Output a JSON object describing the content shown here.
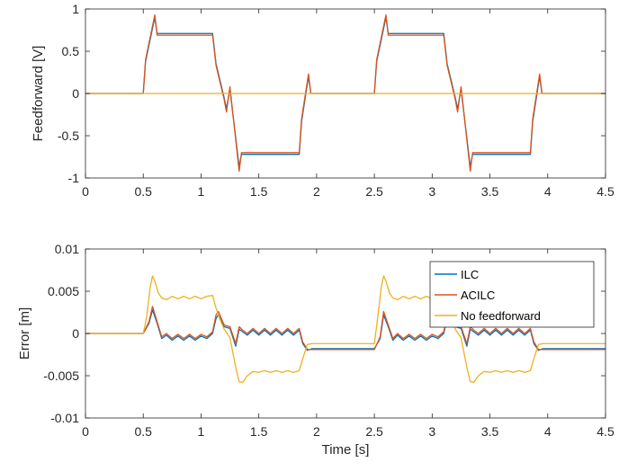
{
  "chart_data": [
    {
      "type": "line",
      "title": "",
      "xlabel": "",
      "ylabel": "Feedforward [V]",
      "xlim": [
        0,
        4.5
      ],
      "ylim": [
        -1,
        1
      ],
      "xticks": [
        0,
        0.5,
        1,
        1.5,
        2,
        2.5,
        3,
        3.5,
        4,
        4.5
      ],
      "xtick_labels": [
        "0",
        "0.5",
        "1",
        "1.5",
        "2",
        "2.5",
        "3",
        "3.5",
        "4",
        "4.5"
      ],
      "yticks": [
        -1,
        -0.5,
        0,
        0.5,
        1
      ],
      "ytick_labels": [
        "-1",
        "-0.5",
        "0",
        "0.5",
        "1"
      ],
      "grid": false,
      "series": [
        {
          "color": "#0072BD",
          "x": [
            0,
            0.5,
            0.52,
            0.6,
            0.62,
            1.1,
            1.13,
            1.2,
            1.22,
            1.25,
            1.33,
            1.35,
            1.85,
            1.87,
            1.93,
            1.95,
            2.5,
            2.52,
            2.6,
            2.62,
            3.1,
            3.13,
            3.2,
            3.22,
            3.25,
            3.33,
            3.35,
            3.85,
            3.87,
            3.93,
            3.95,
            4.5
          ],
          "y": [
            0,
            0,
            0.38,
            0.9,
            0.71,
            0.71,
            0.35,
            -0.05,
            -0.18,
            0.05,
            -0.87,
            -0.72,
            -0.72,
            -0.33,
            0.2,
            0,
            0,
            0.38,
            0.9,
            0.71,
            0.71,
            0.35,
            -0.05,
            -0.18,
            0.05,
            -0.87,
            -0.72,
            -0.72,
            -0.33,
            0.2,
            0,
            0
          ]
        },
        {
          "color": "#D95319",
          "x": [
            0,
            0.5,
            0.52,
            0.6,
            0.62,
            1.1,
            1.13,
            1.2,
            1.22,
            1.25,
            1.33,
            1.35,
            1.85,
            1.87,
            1.93,
            1.95,
            2.5,
            2.52,
            2.6,
            2.62,
            3.1,
            3.13,
            3.2,
            3.22,
            3.25,
            3.33,
            3.35,
            3.85,
            3.87,
            3.93,
            3.95,
            4.5
          ],
          "y": [
            0,
            0,
            0.4,
            0.93,
            0.69,
            0.69,
            0.33,
            -0.07,
            -0.22,
            0.08,
            -0.92,
            -0.7,
            -0.7,
            -0.3,
            0.23,
            0,
            0,
            0.4,
            0.93,
            0.69,
            0.69,
            0.33,
            -0.07,
            -0.22,
            0.08,
            -0.92,
            -0.7,
            -0.7,
            -0.3,
            0.23,
            0,
            0
          ]
        },
        {
          "color": "#EDB120",
          "x": [
            0,
            4.5
          ],
          "y": [
            0,
            0
          ]
        }
      ]
    },
    {
      "type": "line",
      "title": "",
      "xlabel": "Time [s]",
      "ylabel": "Error [m]",
      "xlim": [
        0,
        4.5
      ],
      "ylim": [
        -0.01,
        0.01
      ],
      "xticks": [
        0,
        0.5,
        1,
        1.5,
        2,
        2.5,
        3,
        3.5,
        4,
        4.5
      ],
      "xtick_labels": [
        "0",
        "0.5",
        "1",
        "1.5",
        "2",
        "2.5",
        "3",
        "3.5",
        "4",
        "4.5"
      ],
      "yticks": [
        -0.01,
        -0.005,
        0,
        0.005,
        0.01
      ],
      "ytick_labels": [
        "-0.01",
        "-0.005",
        "0",
        "0.005",
        "0.01"
      ],
      "grid": false,
      "legend_location": "top-right",
      "series": [
        {
          "name": "ILC",
          "color": "#0072BD",
          "x": [
            0,
            0.5,
            0.55,
            0.58,
            0.62,
            0.66,
            0.7,
            0.75,
            0.8,
            0.85,
            0.9,
            0.95,
            1.0,
            1.05,
            1.1,
            1.13,
            1.15,
            1.2,
            1.25,
            1.3,
            1.33,
            1.36,
            1.4,
            1.45,
            1.5,
            1.55,
            1.6,
            1.65,
            1.7,
            1.75,
            1.8,
            1.85,
            1.88,
            1.92,
            1.96,
            2.0,
            2.5,
            2.55,
            2.58,
            2.62,
            2.66,
            2.7,
            2.75,
            2.8,
            2.85,
            2.9,
            2.95,
            3.0,
            3.05,
            3.1,
            3.13,
            3.15,
            3.2,
            3.25,
            3.3,
            3.33,
            3.36,
            3.4,
            3.45,
            3.5,
            3.55,
            3.6,
            3.65,
            3.7,
            3.75,
            3.8,
            3.85,
            3.88,
            3.92,
            3.96,
            4.0,
            4.5
          ],
          "y": [
            0,
            0,
            0.0012,
            0.0028,
            0.0012,
            -0.0006,
            -0.0002,
            -0.0008,
            -0.0003,
            -0.0008,
            -0.0003,
            -0.0008,
            -0.0003,
            -0.0006,
            0,
            0.0018,
            0.0022,
            0.0008,
            0.0006,
            -0.0015,
            0.0005,
            0.0002,
            -0.0002,
            0.0004,
            -0.0002,
            0.0004,
            -0.0002,
            0.0004,
            -0.0002,
            0.0004,
            -0.0002,
            0.0004,
            -0.0012,
            -0.002,
            -0.0018,
            -0.0018,
            -0.0018,
            -0.0006,
            0.0022,
            0.0008,
            -0.0008,
            -0.0002,
            -0.0008,
            -0.0003,
            -0.0008,
            -0.0003,
            -0.0008,
            -0.0003,
            -0.0006,
            0,
            0.0018,
            0.0022,
            0.0008,
            0.0006,
            -0.0015,
            0.0005,
            0.0002,
            -0.0002,
            0.0004,
            -0.0002,
            0.0004,
            -0.0002,
            0.0004,
            -0.0002,
            0.0004,
            -0.0002,
            0.0004,
            -0.0012,
            -0.002,
            -0.0018,
            -0.0018,
            -0.0018
          ]
        },
        {
          "name": "ACILC",
          "color": "#D95319",
          "x": [
            0,
            0.5,
            0.55,
            0.58,
            0.62,
            0.66,
            0.7,
            0.75,
            0.8,
            0.85,
            0.9,
            0.95,
            1.0,
            1.05,
            1.1,
            1.13,
            1.15,
            1.2,
            1.25,
            1.3,
            1.33,
            1.36,
            1.4,
            1.45,
            1.5,
            1.55,
            1.6,
            1.65,
            1.7,
            1.75,
            1.8,
            1.85,
            1.88,
            1.92,
            1.96,
            2.0,
            2.5,
            2.55,
            2.58,
            2.62,
            2.66,
            2.7,
            2.75,
            2.8,
            2.85,
            2.9,
            2.95,
            3.0,
            3.05,
            3.1,
            3.13,
            3.15,
            3.2,
            3.25,
            3.3,
            3.33,
            3.36,
            3.4,
            3.45,
            3.5,
            3.55,
            3.6,
            3.65,
            3.7,
            3.75,
            3.8,
            3.85,
            3.88,
            3.92,
            3.96,
            4.0,
            4.5
          ],
          "y": [
            0,
            0,
            0.0014,
            0.0032,
            0.0014,
            -0.0004,
            0,
            -0.0006,
            -0.0001,
            -0.0006,
            -0.0001,
            -0.0006,
            -0.0001,
            -0.0004,
            0.0002,
            0.0022,
            0.0026,
            0.001,
            0.0008,
            -0.0012,
            0.0008,
            0.0004,
            0,
            0.0006,
            0,
            0.0006,
            0,
            0.0006,
            0,
            0.0006,
            0,
            0.0006,
            -0.001,
            -0.0019,
            -0.0019,
            -0.0019,
            -0.0019,
            -0.0004,
            0.0026,
            0.001,
            -0.0006,
            0,
            -0.0006,
            -0.0001,
            -0.0006,
            -0.0001,
            -0.0006,
            -0.0001,
            -0.0004,
            0.0002,
            0.0022,
            0.0026,
            0.001,
            0.0008,
            -0.0012,
            0.0008,
            0.0004,
            0,
            0.0006,
            0,
            0.0006,
            0,
            0.0006,
            0,
            0.0006,
            0,
            0.0006,
            -0.001,
            -0.0019,
            -0.0019,
            -0.0019,
            -0.0019
          ]
        },
        {
          "name": "No feedforward",
          "color": "#EDB120",
          "x": [
            0,
            0.5,
            0.53,
            0.56,
            0.58,
            0.6,
            0.63,
            0.66,
            0.7,
            0.75,
            0.8,
            0.85,
            0.9,
            0.95,
            1.0,
            1.05,
            1.1,
            1.13,
            1.16,
            1.2,
            1.25,
            1.3,
            1.33,
            1.36,
            1.4,
            1.45,
            1.5,
            1.55,
            1.6,
            1.65,
            1.7,
            1.75,
            1.8,
            1.85,
            1.88,
            1.92,
            1.96,
            2.5,
            2.53,
            2.56,
            2.58,
            2.6,
            2.63,
            2.66,
            2.7,
            2.75,
            2.8,
            2.85,
            2.9,
            2.95,
            3.0,
            3.05,
            3.1,
            3.13,
            3.16,
            3.2,
            3.25,
            3.3,
            3.33,
            3.36,
            3.4,
            3.45,
            3.5,
            3.55,
            3.6,
            3.65,
            3.7,
            3.75,
            3.8,
            3.85,
            3.88,
            3.92,
            3.96,
            4.5
          ],
          "y": [
            0,
            0,
            0.002,
            0.0055,
            0.0068,
            0.0062,
            0.0048,
            0.0042,
            0.004,
            0.0044,
            0.0041,
            0.0044,
            0.0041,
            0.0044,
            0.0041,
            0.0044,
            0.0045,
            0.003,
            0.0018,
            0.0005,
            -0.0005,
            -0.004,
            -0.0057,
            -0.0058,
            -0.005,
            -0.0045,
            -0.0046,
            -0.0044,
            -0.0046,
            -0.0044,
            -0.0046,
            -0.0044,
            -0.0046,
            -0.0044,
            -0.003,
            -0.0013,
            -0.0012,
            -0.0012,
            0.002,
            0.0055,
            0.0068,
            0.0062,
            0.0048,
            0.0042,
            0.004,
            0.0044,
            0.0041,
            0.0044,
            0.0041,
            0.0044,
            0.0041,
            0.0044,
            0.0045,
            0.003,
            0.0018,
            0.0005,
            -0.0005,
            -0.004,
            -0.0057,
            -0.0058,
            -0.005,
            -0.0045,
            -0.0046,
            -0.0044,
            -0.0046,
            -0.0044,
            -0.0046,
            -0.0044,
            -0.0046,
            -0.0044,
            -0.003,
            -0.0013,
            -0.0012,
            -0.0012
          ]
        }
      ]
    }
  ]
}
